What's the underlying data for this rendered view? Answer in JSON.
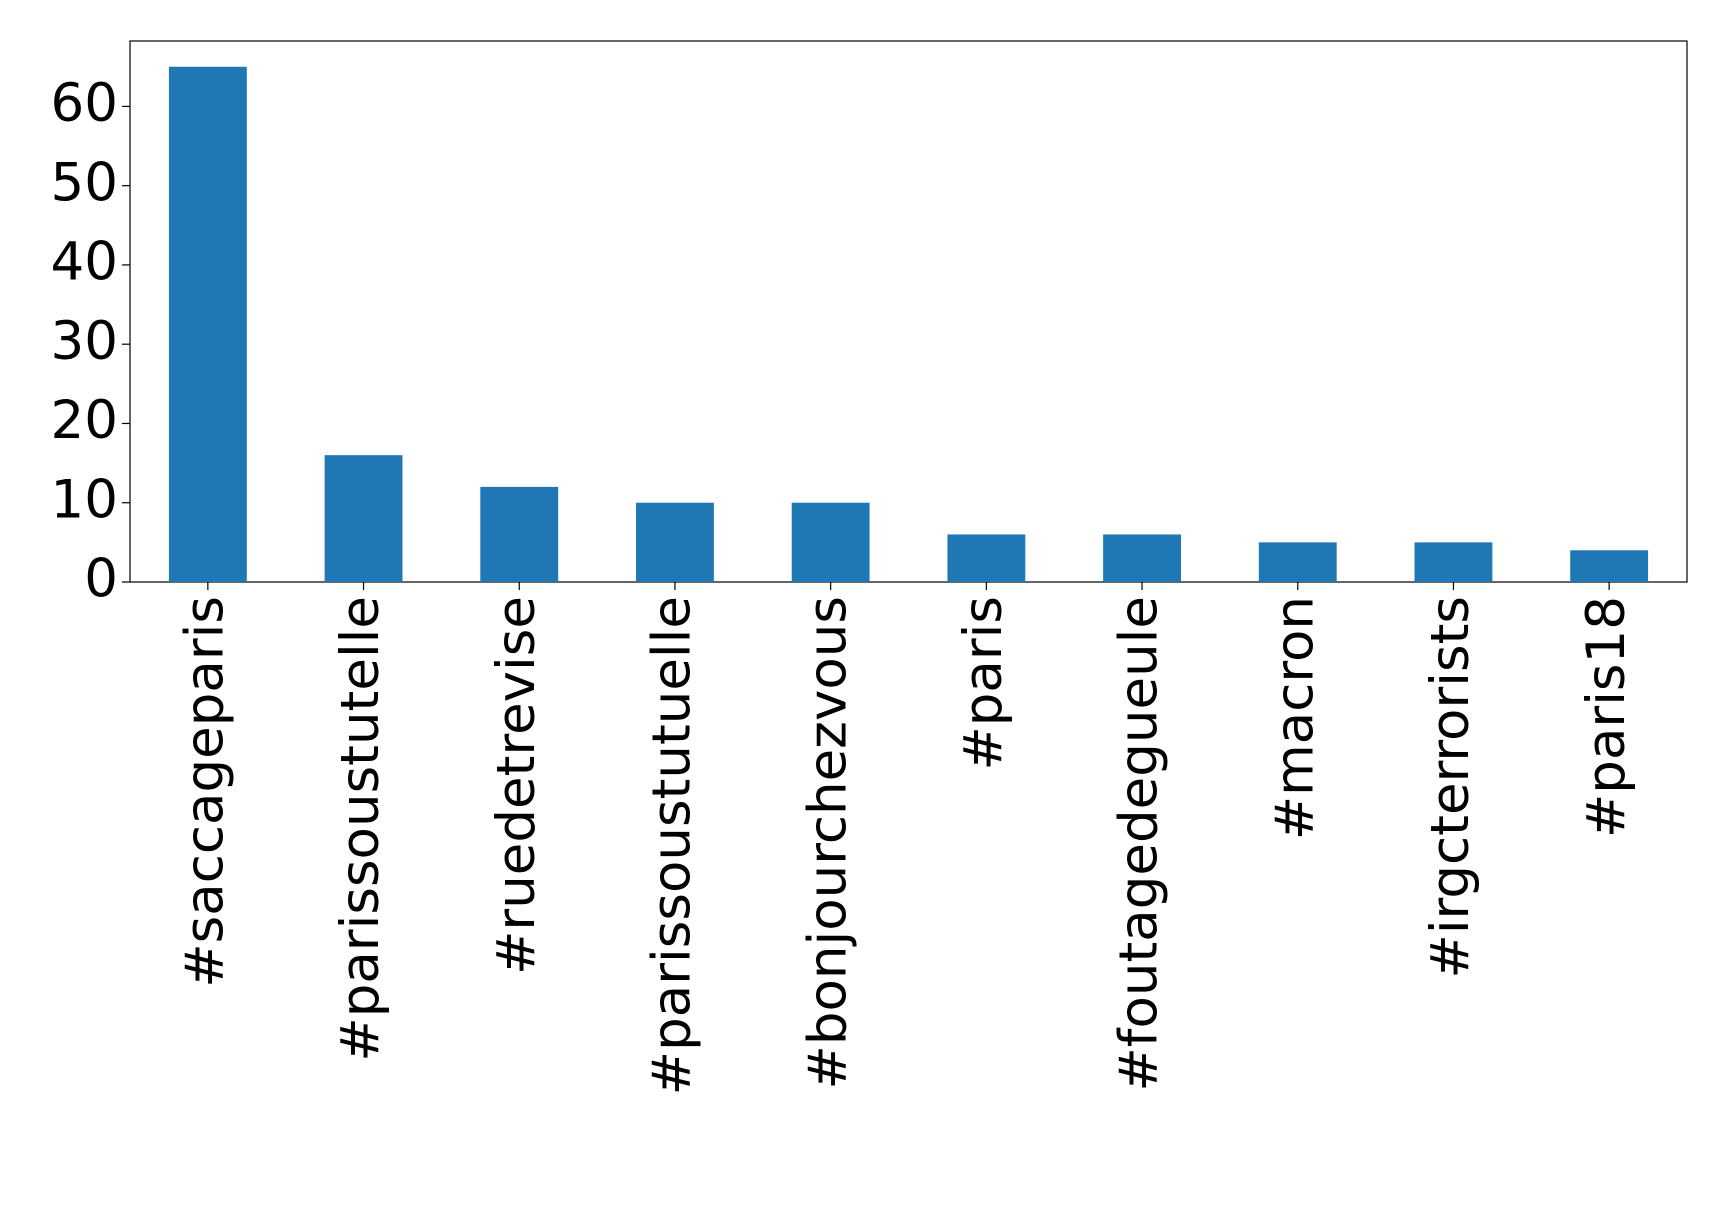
{
  "chart_data": {
    "type": "bar",
    "categories": [
      "#saccageparis",
      "#parissoustutelle",
      "#ruedetrevise",
      "#parissoustutuelle",
      "#bonjourchezvous",
      "#paris",
      "#foutagedegueule",
      "#macron",
      "#irgcterrorists",
      "#paris18"
    ],
    "values": [
      65,
      16,
      12,
      10,
      10,
      6,
      6,
      5,
      5,
      4
    ],
    "color": "#1f77b4",
    "ylim": [
      0,
      68.25
    ],
    "yticks": [
      0,
      10,
      20,
      30,
      40,
      50,
      60
    ],
    "grid": false
  }
}
